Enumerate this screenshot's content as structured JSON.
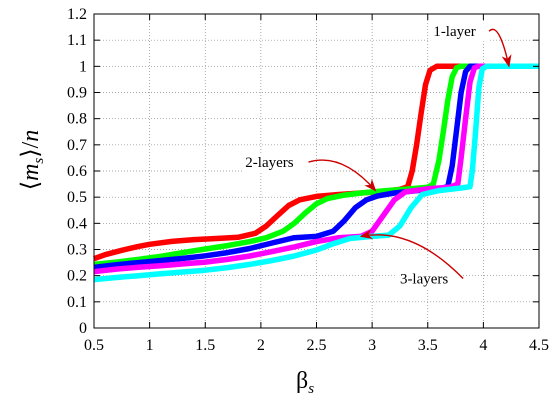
{
  "chart_data": {
    "type": "line",
    "ylabel": "⟨m_s⟩/n",
    "xlabel": "β_s",
    "xlim": [
      0.5,
      4.5
    ],
    "ylim": [
      0,
      1.2
    ],
    "xticks": [
      0.5,
      1,
      1.5,
      2,
      2.5,
      3,
      3.5,
      4,
      4.5
    ],
    "yticks": [
      0,
      0.1,
      0.2,
      0.3,
      0.4,
      0.5,
      0.6,
      0.7,
      0.8,
      0.9,
      1,
      1.1,
      1.2
    ],
    "grid": true,
    "colors": [
      "#ff0000",
      "#00ff00",
      "#0000ff",
      "#ff00ff",
      "#00ffff"
    ],
    "annotations": [
      {
        "text": "1-layer",
        "x": 3.55,
        "y": 1.115,
        "target_x": 4.23,
        "target_y": 1.0
      },
      {
        "text": "2-layers",
        "x": 1.86,
        "y": 0.615,
        "target_x": 3.03,
        "target_y": 0.525
      },
      {
        "text": "3-layers",
        "x": 3.25,
        "y": 0.17,
        "target_x": 2.9,
        "target_y": 0.35
      }
    ],
    "series": [
      {
        "color": "#ff0000",
        "points": [
          [
            0.5,
            0.265
          ],
          [
            0.6,
            0.28
          ],
          [
            0.75,
            0.297
          ],
          [
            0.9,
            0.312
          ],
          [
            1.0,
            0.32
          ],
          [
            1.2,
            0.331
          ],
          [
            1.4,
            0.338
          ],
          [
            1.6,
            0.342
          ],
          [
            1.8,
            0.347
          ],
          [
            1.95,
            0.362
          ],
          [
            2.05,
            0.39
          ],
          [
            2.15,
            0.43
          ],
          [
            2.25,
            0.468
          ],
          [
            2.35,
            0.49
          ],
          [
            2.5,
            0.503
          ],
          [
            2.7,
            0.51
          ],
          [
            2.9,
            0.516
          ],
          [
            3.1,
            0.522
          ],
          [
            3.25,
            0.53
          ],
          [
            3.32,
            0.54
          ],
          [
            3.36,
            0.6
          ],
          [
            3.4,
            0.7
          ],
          [
            3.44,
            0.82
          ],
          [
            3.48,
            0.93
          ],
          [
            3.52,
            0.985
          ],
          [
            3.58,
            1.0
          ],
          [
            4.5,
            1.0
          ]
        ]
      },
      {
        "color": "#00ff00",
        "points": [
          [
            0.5,
            0.243
          ],
          [
            0.7,
            0.252
          ],
          [
            0.9,
            0.262
          ],
          [
            1.1,
            0.274
          ],
          [
            1.3,
            0.288
          ],
          [
            1.5,
            0.302
          ],
          [
            1.7,
            0.315
          ],
          [
            1.9,
            0.33
          ],
          [
            2.05,
            0.345
          ],
          [
            2.2,
            0.37
          ],
          [
            2.3,
            0.4
          ],
          [
            2.4,
            0.44
          ],
          [
            2.5,
            0.475
          ],
          [
            2.6,
            0.495
          ],
          [
            2.75,
            0.508
          ],
          [
            2.9,
            0.516
          ],
          [
            3.1,
            0.524
          ],
          [
            3.3,
            0.53
          ],
          [
            3.5,
            0.538
          ],
          [
            3.55,
            0.55
          ],
          [
            3.6,
            0.64
          ],
          [
            3.64,
            0.75
          ],
          [
            3.68,
            0.87
          ],
          [
            3.72,
            0.96
          ],
          [
            3.76,
            0.995
          ],
          [
            3.8,
            1.0
          ],
          [
            4.5,
            1.0
          ]
        ]
      },
      {
        "color": "#0000ff",
        "points": [
          [
            0.5,
            0.232
          ],
          [
            0.7,
            0.242
          ],
          [
            0.9,
            0.25
          ],
          [
            1.1,
            0.258
          ],
          [
            1.3,
            0.266
          ],
          [
            1.5,
            0.276
          ],
          [
            1.7,
            0.288
          ],
          [
            1.9,
            0.304
          ],
          [
            2.1,
            0.325
          ],
          [
            2.3,
            0.345
          ],
          [
            2.5,
            0.35
          ],
          [
            2.65,
            0.37
          ],
          [
            2.75,
            0.41
          ],
          [
            2.85,
            0.46
          ],
          [
            2.95,
            0.49
          ],
          [
            3.05,
            0.505
          ],
          [
            3.2,
            0.516
          ],
          [
            3.4,
            0.525
          ],
          [
            3.6,
            0.532
          ],
          [
            3.68,
            0.54
          ],
          [
            3.72,
            0.62
          ],
          [
            3.76,
            0.76
          ],
          [
            3.8,
            0.9
          ],
          [
            3.84,
            0.98
          ],
          [
            3.88,
            1.0
          ],
          [
            4.5,
            1.0
          ]
        ]
      },
      {
        "color": "#ff00ff",
        "points": [
          [
            0.5,
            0.215
          ],
          [
            0.7,
            0.225
          ],
          [
            0.9,
            0.232
          ],
          [
            1.1,
            0.238
          ],
          [
            1.3,
            0.245
          ],
          [
            1.5,
            0.252
          ],
          [
            1.7,
            0.262
          ],
          [
            1.9,
            0.275
          ],
          [
            2.1,
            0.292
          ],
          [
            2.3,
            0.31
          ],
          [
            2.5,
            0.33
          ],
          [
            2.7,
            0.345
          ],
          [
            2.9,
            0.35
          ],
          [
            3.0,
            0.37
          ],
          [
            3.1,
            0.43
          ],
          [
            3.2,
            0.49
          ],
          [
            3.3,
            0.52
          ],
          [
            3.5,
            0.532
          ],
          [
            3.7,
            0.538
          ],
          [
            3.77,
            0.55
          ],
          [
            3.8,
            0.65
          ],
          [
            3.84,
            0.8
          ],
          [
            3.88,
            0.94
          ],
          [
            3.92,
            0.995
          ],
          [
            3.96,
            1.0
          ],
          [
            4.5,
            1.0
          ]
        ]
      },
      {
        "color": "#00ffff",
        "points": [
          [
            0.5,
            0.185
          ],
          [
            0.7,
            0.193
          ],
          [
            0.9,
            0.2
          ],
          [
            1.1,
            0.207
          ],
          [
            1.3,
            0.214
          ],
          [
            1.5,
            0.221
          ],
          [
            1.7,
            0.231
          ],
          [
            1.9,
            0.243
          ],
          [
            2.1,
            0.258
          ],
          [
            2.3,
            0.275
          ],
          [
            2.5,
            0.298
          ],
          [
            2.65,
            0.322
          ],
          [
            2.8,
            0.342
          ],
          [
            3.0,
            0.35
          ],
          [
            3.15,
            0.355
          ],
          [
            3.25,
            0.39
          ],
          [
            3.35,
            0.46
          ],
          [
            3.45,
            0.51
          ],
          [
            3.6,
            0.525
          ],
          [
            3.8,
            0.535
          ],
          [
            3.88,
            0.54
          ],
          [
            3.9,
            0.6
          ],
          [
            3.93,
            0.75
          ],
          [
            3.96,
            0.92
          ],
          [
            3.99,
            0.99
          ],
          [
            4.03,
            1.0
          ],
          [
            4.5,
            1.0
          ]
        ]
      }
    ]
  }
}
